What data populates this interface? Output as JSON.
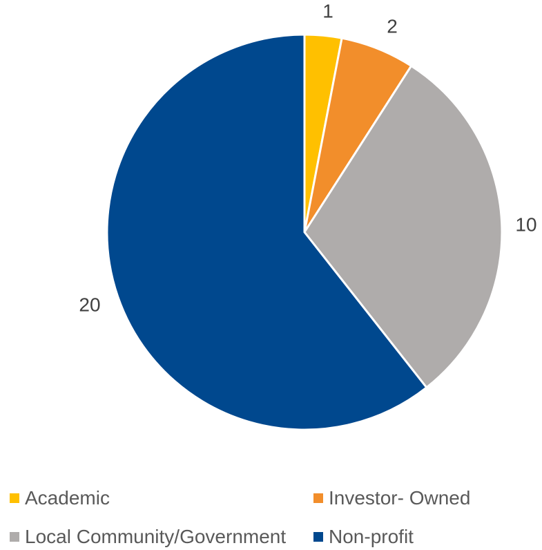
{
  "chart_data": {
    "type": "pie",
    "title": "",
    "start_angle_deg": 0,
    "direction": "clockwise",
    "legend_position": "bottom",
    "slices": [
      {
        "label": "Academic",
        "value": 1,
        "color": "#FFC000"
      },
      {
        "label": "Investor- Owned",
        "value": 2,
        "color": "#F28E2B"
      },
      {
        "label": "Local Community/Government",
        "value": 10,
        "color": "#AFACAB"
      },
      {
        "label": "Non-profit",
        "value": 20,
        "color": "#00488E"
      }
    ]
  }
}
